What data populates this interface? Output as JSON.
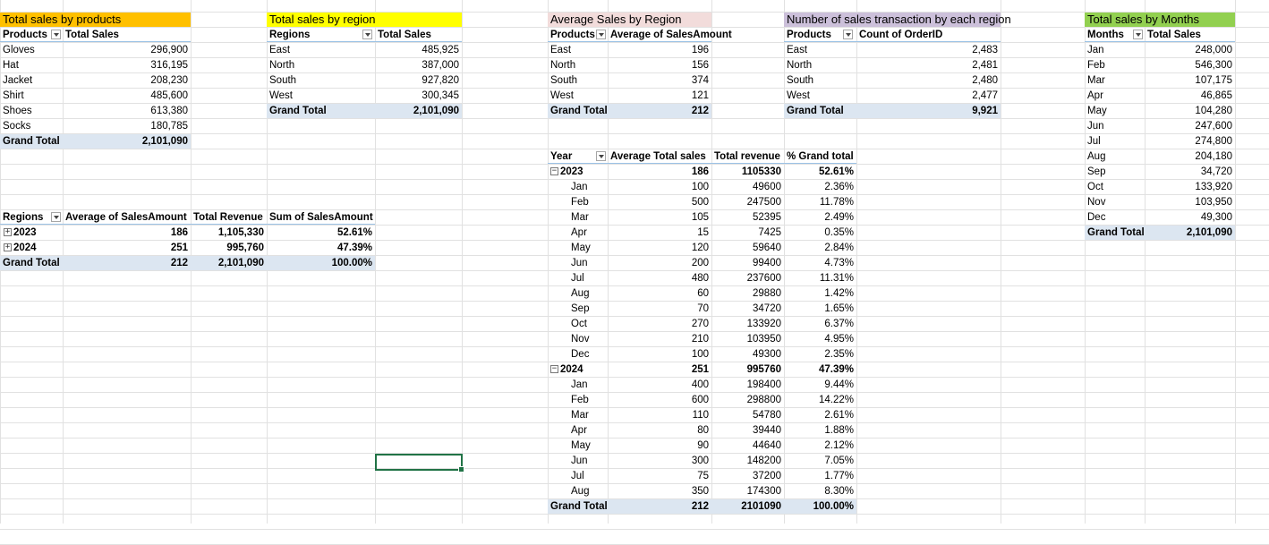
{
  "colors": {
    "orange": "#ffc000",
    "yellow": "#ffff00",
    "pink": "#f2dcdb",
    "lavender": "#ccc0da",
    "green": "#92d050",
    "total_fill": "#dce6f1",
    "selection": "#217346"
  },
  "products_pivot": {
    "title": "Total sales by products",
    "col1": "Products",
    "col2": "Total Sales",
    "rows": [
      [
        "Gloves",
        "296,900"
      ],
      [
        "Hat",
        "316,195"
      ],
      [
        "Jacket",
        "208,230"
      ],
      [
        "Shirt",
        "485,600"
      ],
      [
        "Shoes",
        "613,380"
      ],
      [
        "Socks",
        "180,785"
      ]
    ],
    "total": [
      "Grand Total",
      "2,101,090"
    ]
  },
  "region_pivot": {
    "title": "Total sales by region",
    "col1": "Regions",
    "col2": "Total Sales",
    "rows": [
      [
        "East",
        "485,925"
      ],
      [
        "North",
        "387,000"
      ],
      [
        "South",
        "927,820"
      ],
      [
        "West",
        "300,345"
      ]
    ],
    "total": [
      "Grand Total",
      "2,101,090"
    ]
  },
  "avg_region_pivot": {
    "title": "Average Sales by Region",
    "col1": "Products",
    "col2": "Average of SalesAmount",
    "rows": [
      [
        "East",
        "196"
      ],
      [
        "North",
        "156"
      ],
      [
        "South",
        "374"
      ],
      [
        "West",
        "121"
      ]
    ],
    "total": [
      "Grand Total",
      "212"
    ]
  },
  "count_region_pivot": {
    "title": "Number of sales transaction by each region",
    "col1": "Products",
    "col2": "Count of OrderID",
    "rows": [
      [
        "East",
        "2,483"
      ],
      [
        "North",
        "2,481"
      ],
      [
        "South",
        "2,480"
      ],
      [
        "West",
        "2,477"
      ]
    ],
    "total": [
      "Grand Total",
      "9,921"
    ]
  },
  "months_pivot": {
    "title": "Total sales by Months",
    "col1": "Months",
    "col2": "Total Sales",
    "rows": [
      [
        "Jan",
        "248,000"
      ],
      [
        "Feb",
        "546,300"
      ],
      [
        "Mar",
        "107,175"
      ],
      [
        "Apr",
        "46,865"
      ],
      [
        "May",
        "104,280"
      ],
      [
        "Jun",
        "247,600"
      ],
      [
        "Jul",
        "274,800"
      ],
      [
        "Aug",
        "204,180"
      ],
      [
        "Sep",
        "34,720"
      ],
      [
        "Oct",
        "133,920"
      ],
      [
        "Nov",
        "103,950"
      ],
      [
        "Dec",
        "49,300"
      ]
    ],
    "total": [
      "Grand Total",
      "2,101,090"
    ]
  },
  "year_summary_pivot": {
    "headers": [
      "Regions",
      "Average of SalesAmount",
      "Total Revenue",
      "Sum of SalesAmount"
    ],
    "rows": [
      [
        "2023",
        "186",
        "1,105,330",
        "52.61%"
      ],
      [
        "2024",
        "251",
        "995,760",
        "47.39%"
      ]
    ],
    "total": [
      "Grand Total",
      "212",
      "2,101,090",
      "100.00%"
    ]
  },
  "year_month_pivot": {
    "headers": [
      "Year",
      "Average Total sales",
      "Total revenue",
      "% Grand total"
    ],
    "groups": [
      {
        "year": "2023",
        "values": [
          "186",
          "1105330",
          "52.61%"
        ],
        "months": [
          [
            "Jan",
            "100",
            "49600",
            "2.36%"
          ],
          [
            "Feb",
            "500",
            "247500",
            "11.78%"
          ],
          [
            "Mar",
            "105",
            "52395",
            "2.49%"
          ],
          [
            "Apr",
            "15",
            "7425",
            "0.35%"
          ],
          [
            "May",
            "120",
            "59640",
            "2.84%"
          ],
          [
            "Jun",
            "200",
            "99400",
            "4.73%"
          ],
          [
            "Jul",
            "480",
            "237600",
            "11.31%"
          ],
          [
            "Aug",
            "60",
            "29880",
            "1.42%"
          ],
          [
            "Sep",
            "70",
            "34720",
            "1.65%"
          ],
          [
            "Oct",
            "270",
            "133920",
            "6.37%"
          ],
          [
            "Nov",
            "210",
            "103950",
            "4.95%"
          ],
          [
            "Dec",
            "100",
            "49300",
            "2.35%"
          ]
        ]
      },
      {
        "year": "2024",
        "values": [
          "251",
          "995760",
          "47.39%"
        ],
        "months": [
          [
            "Jan",
            "400",
            "198400",
            "9.44%"
          ],
          [
            "Feb",
            "600",
            "298800",
            "14.22%"
          ],
          [
            "Mar",
            "110",
            "54780",
            "2.61%"
          ],
          [
            "Apr",
            "80",
            "39440",
            "1.88%"
          ],
          [
            "May",
            "90",
            "44640",
            "2.12%"
          ],
          [
            "Jun",
            "300",
            "148200",
            "7.05%"
          ],
          [
            "Jul",
            "75",
            "37200",
            "1.77%"
          ],
          [
            "Aug",
            "350",
            "174300",
            "8.30%"
          ]
        ]
      }
    ],
    "total": [
      "Grand Total",
      "212",
      "2101090",
      "100.00%"
    ]
  },
  "icons": {
    "filter": "filter-dropdown-icon",
    "collapse": "collapse-icon",
    "expand": "expand-icon"
  }
}
